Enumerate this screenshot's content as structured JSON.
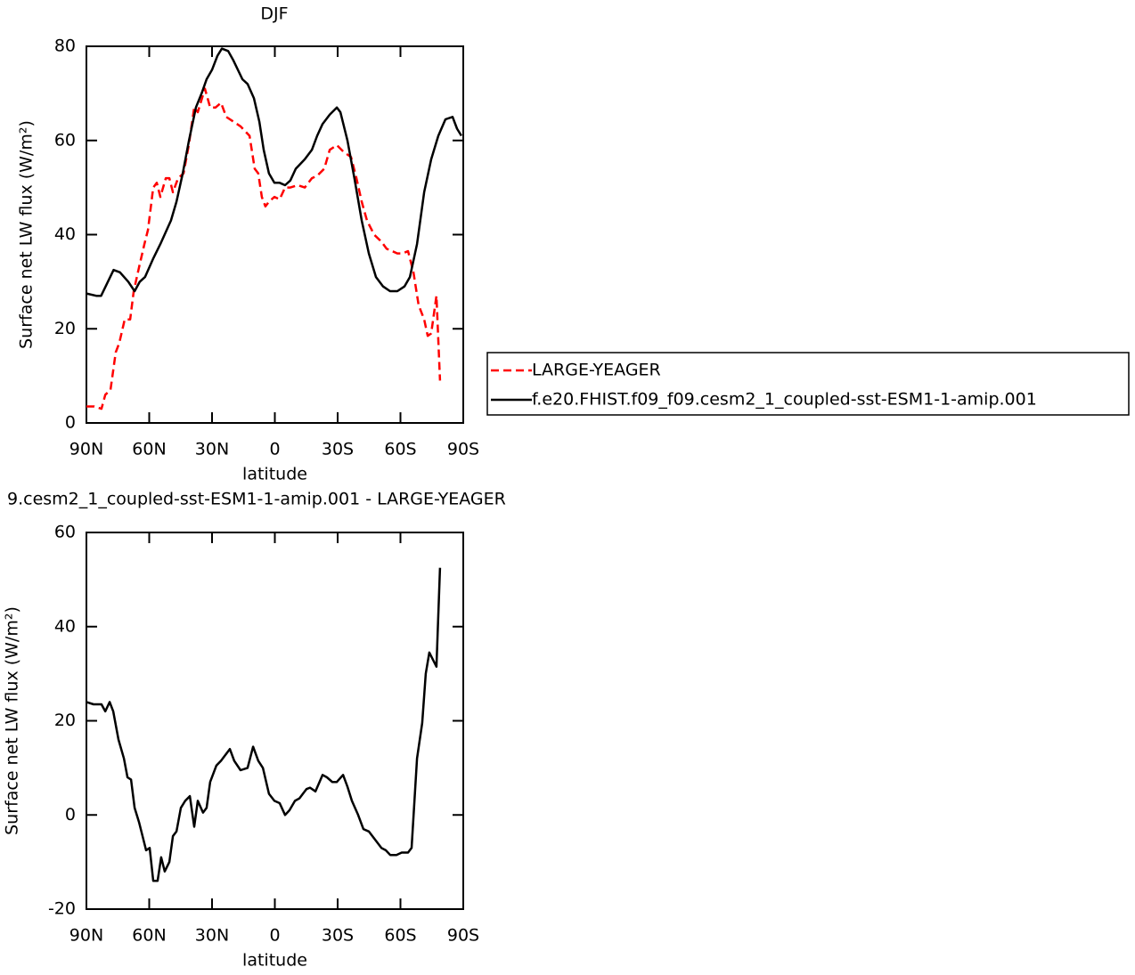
{
  "chart_data": [
    {
      "type": "line",
      "title": "DJF",
      "xlabel": "latitude",
      "ylabel": "Surface net LW flux (W/m²)",
      "xlim": [
        90,
        -90
      ],
      "xticks": [
        {
          "value": 90,
          "label": "90N"
        },
        {
          "value": 60,
          "label": "60N"
        },
        {
          "value": 30,
          "label": "30N"
        },
        0,
        {
          "value": -30,
          "label": "30S"
        },
        {
          "value": -60,
          "label": "60S"
        },
        {
          "value": -90,
          "label": "90S"
        }
      ],
      "ylim": [
        0,
        80
      ],
      "yticks": [
        0,
        20,
        40,
        60,
        80
      ],
      "legend": "right",
      "series": [
        {
          "name": "LARGE-YEAGER",
          "color": "#ff0000",
          "dashed": true,
          "x": [
            90,
            86.2,
            82.8,
            81,
            78.5,
            76,
            74.3,
            71.7,
            69.1,
            67.4,
            64.9,
            62.3,
            60.6,
            58.1,
            56.4,
            54.7,
            52.1,
            50.4,
            48.7,
            46.2,
            43.6,
            41.1,
            38.5,
            36.8,
            33.4,
            30.9,
            28.3,
            25.7,
            23.2,
            19.8,
            16.4,
            12.1,
            9.6,
            7.9,
            6.2,
            4.5,
            2.8,
            0.2,
            -2.3,
            -4.9,
            -7.4,
            -10.9,
            -14.3,
            -17.7,
            -20.2,
            -23.6,
            -26.2,
            -29.6,
            -33,
            -36.4,
            -39,
            -41.5,
            -44,
            -47.4,
            -50.9,
            -53.4,
            -56,
            -58.5,
            -61.1,
            -63.6,
            -66.2,
            -68.7,
            -71.3,
            -73,
            -74.7,
            -77.2,
            -78.9
          ],
          "values": [
            3.5,
            3.5,
            3,
            6,
            7,
            15,
            17,
            22,
            22,
            28,
            33,
            38,
            41,
            50,
            51,
            48,
            52,
            52,
            49,
            52,
            53,
            59,
            67,
            66,
            71,
            67,
            67,
            68,
            65,
            64,
            63,
            61,
            54,
            53,
            48,
            46,
            47,
            48,
            47.5,
            50,
            50,
            50.5,
            50,
            52,
            52.5,
            54,
            58,
            59,
            57.5,
            56.5,
            52,
            47,
            43,
            40,
            38.5,
            37,
            36.5,
            36,
            36,
            36.5,
            32,
            25,
            22,
            18.5,
            19,
            27,
            9
          ]
        },
        {
          "name": "f.e20.FHIST.f09_f09.cesm2_1_coupled-sst-ESM1-1-amip.001",
          "color": "#000000",
          "dashed": false,
          "x": [
            90,
            85.3,
            83,
            77,
            74,
            70,
            67,
            64.5,
            62,
            58,
            54.7,
            49.6,
            47,
            44,
            41,
            37.7,
            35,
            32.6,
            30,
            27.4,
            25.3,
            22.3,
            19.8,
            15.5,
            13,
            10,
            7.4,
            5.3,
            2.8,
            0.2,
            -2.3,
            -4.9,
            -7.4,
            -10,
            -14.3,
            -17.7,
            -20.2,
            -22.8,
            -26.2,
            -29.6,
            -31.3,
            -34.7,
            -38,
            -41.5,
            -44.9,
            -48.3,
            -51.7,
            -55,
            -58.5,
            -61.9,
            -64.5,
            -67.9,
            -71.3,
            -74.7,
            -78.1,
            -81.5,
            -84.9,
            -87,
            -89.1
          ],
          "values": [
            27.5,
            27,
            27,
            32.5,
            32,
            30,
            28,
            30,
            31,
            35,
            38,
            43,
            47,
            53,
            60,
            67,
            70,
            73,
            75,
            78,
            79.5,
            79,
            77,
            73,
            72,
            69,
            64,
            58,
            53,
            51,
            51,
            50.5,
            51.5,
            54,
            56,
            58,
            61,
            63.5,
            65.5,
            67,
            66,
            60,
            52,
            43,
            36,
            31,
            29,
            28,
            28,
            29,
            31,
            38,
            49,
            56,
            61,
            64.5,
            65,
            62.5,
            61
          ]
        }
      ]
    },
    {
      "type": "line",
      "title": "9.cesm2_1_coupled-sst-ESM1-1-amip.001 - LARGE-YEAGER",
      "xlabel": "latitude",
      "ylabel": "Surface net LW flux (W/m²)",
      "xlim": [
        90,
        -90
      ],
      "xticks": [
        {
          "value": 90,
          "label": "90N"
        },
        {
          "value": 60,
          "label": "60N"
        },
        {
          "value": 30,
          "label": "30N"
        },
        0,
        {
          "value": -30,
          "label": "30S"
        },
        {
          "value": -60,
          "label": "60S"
        },
        {
          "value": -90,
          "label": "90S"
        }
      ],
      "ylim": [
        -20,
        60
      ],
      "yticks": [
        -20,
        0,
        20,
        40,
        60
      ],
      "series": [
        {
          "color": "#000000",
          "dashed": false,
          "x": [
            90,
            86.6,
            82.8,
            81,
            78.9,
            77.2,
            74.7,
            72.1,
            70.4,
            68.7,
            67,
            64.9,
            63.2,
            61.5,
            59.8,
            58.1,
            56,
            54.3,
            52.6,
            50.4,
            48.7,
            47,
            44.9,
            42.8,
            40.6,
            38.5,
            36.8,
            34.3,
            32.6,
            30.9,
            27.9,
            25.7,
            21.5,
            19.4,
            16.4,
            13,
            10.4,
            7.9,
            5.7,
            2.8,
            0.2,
            -2.3,
            -4.9,
            -7,
            -9.6,
            -11.7,
            -15.1,
            -16.8,
            -19.4,
            -22.8,
            -24.9,
            -27.4,
            -29.6,
            -32.6,
            -34.7,
            -36.8,
            -39.8,
            -42.3,
            -44.9,
            -48.3,
            -50.9,
            -53,
            -55.1,
            -58.1,
            -60.6,
            -63.6,
            -65.3,
            -67.9,
            -70.4,
            -72.1,
            -73.8,
            -77.2,
            -78.9
          ],
          "values": [
            24,
            23.5,
            23.5,
            22,
            24,
            22,
            16,
            12,
            8,
            7.5,
            1.5,
            -1.5,
            -4.5,
            -7.5,
            -7,
            -14,
            -14,
            -9,
            -12,
            -10,
            -4.5,
            -3.5,
            1.5,
            3,
            4,
            -2.5,
            3,
            0.5,
            1.5,
            7,
            10.5,
            11.5,
            14,
            11.5,
            9.5,
            10,
            14.5,
            11.5,
            10,
            4.5,
            3,
            2.5,
            0,
            1,
            3,
            3.5,
            5.5,
            5.8,
            5,
            8.5,
            8,
            7,
            7,
            8.5,
            6,
            3,
            0,
            -3,
            -3.5,
            -5.5,
            -7,
            -7.5,
            -8.5,
            -8.5,
            -8,
            -8,
            -7,
            12,
            19.5,
            30,
            34.5,
            31.5,
            52.5
          ]
        }
      ]
    }
  ]
}
